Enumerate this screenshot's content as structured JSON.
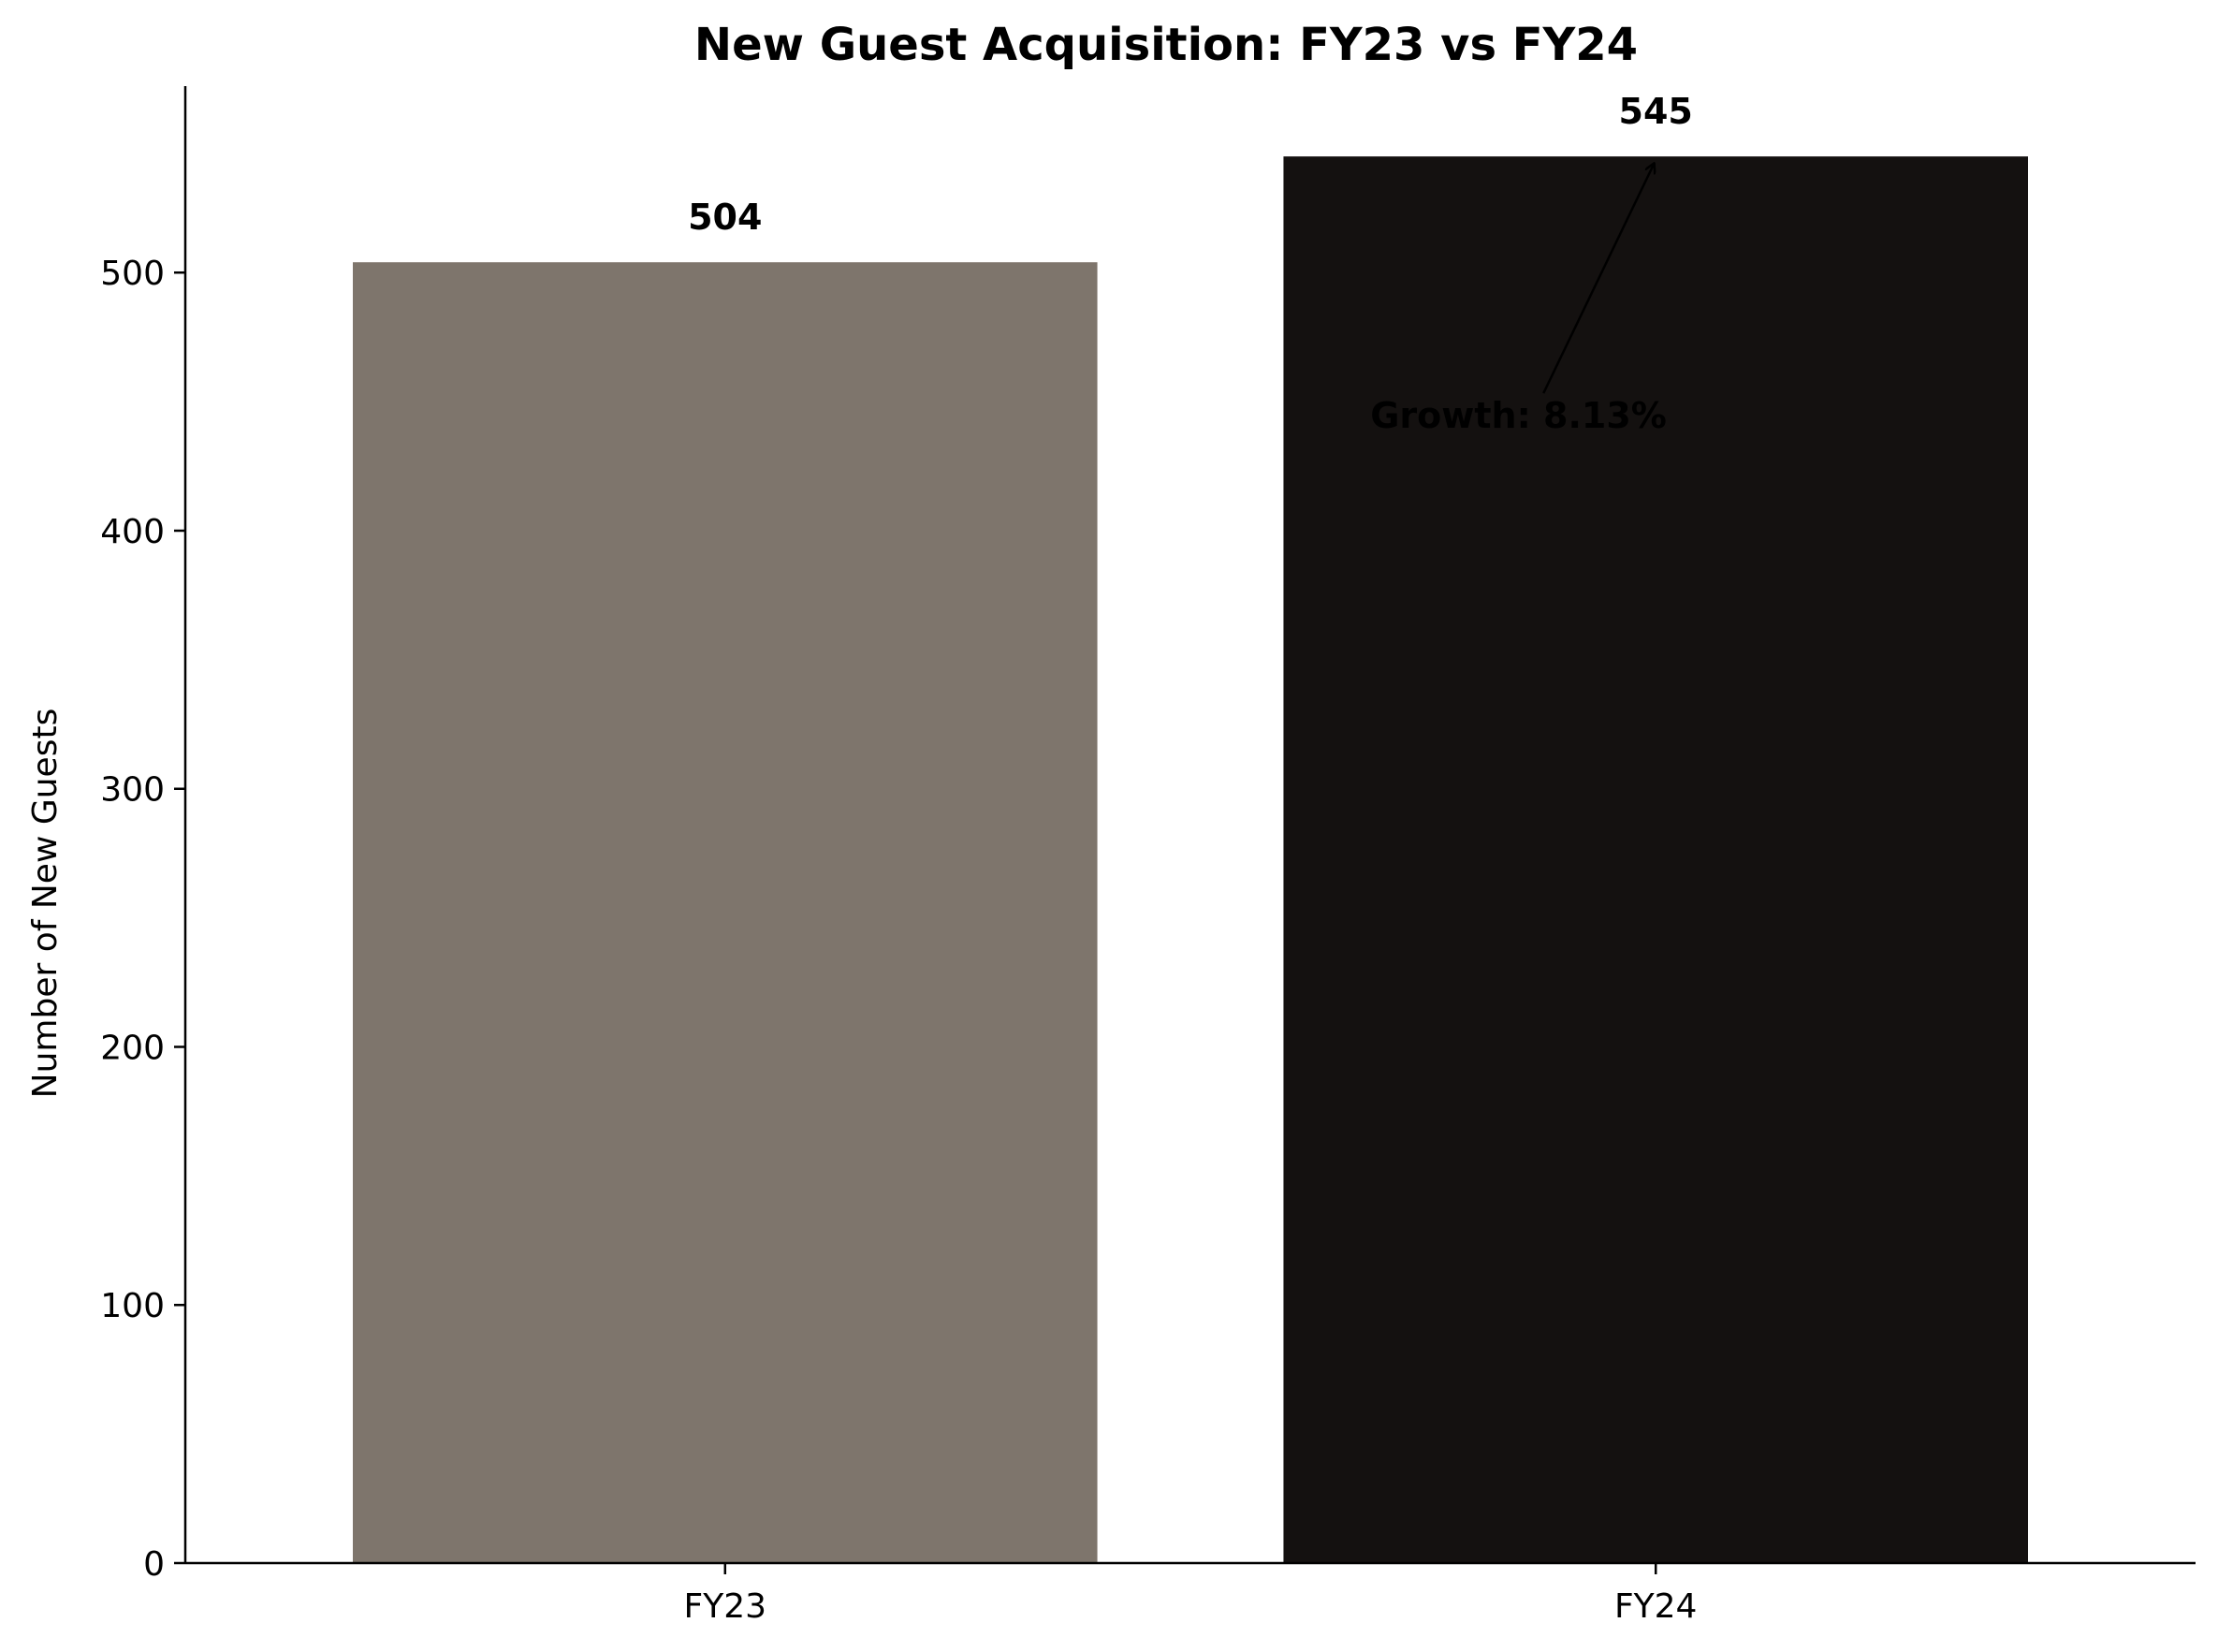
{
  "chart_data": {
    "type": "bar",
    "title": "New Guest Acquisition: FY23 vs FY24",
    "xlabel": "",
    "ylabel": "Number of New Guests",
    "categories": [
      "FY23",
      "FY24"
    ],
    "values": [
      504,
      545
    ],
    "value_labels": [
      "504",
      "545"
    ],
    "colors": [
      "#7e756c",
      "#141110"
    ],
    "ylim": [
      0,
      572.25
    ],
    "yticks": [
      0,
      100,
      200,
      300,
      400,
      500
    ],
    "ytick_labels": [
      "0",
      "100",
      "200",
      "300",
      "400",
      "500"
    ],
    "grid": false,
    "legend": "none",
    "annotation": {
      "text": "Growth: 8.13%",
      "points_to_category": "FY24",
      "points_to_value": 545
    }
  }
}
